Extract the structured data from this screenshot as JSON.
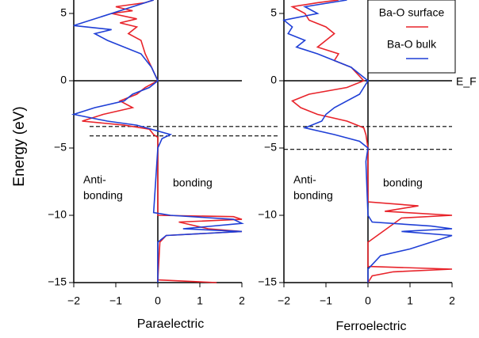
{
  "chart_data": [
    {
      "type": "line",
      "ylabel": "Energy (eV)",
      "xlabel": "Paraelectric",
      "annotations": [
        "Anti-",
        "bonding",
        "bonding"
      ],
      "xlim": [
        -2,
        2
      ],
      "ylim": [
        -15,
        6
      ],
      "xticks": [
        {
          "value": -2,
          "label": "−2"
        },
        {
          "value": -1,
          "label": "−1"
        },
        0,
        1,
        2
      ],
      "yticks": [
        {
          "value": -15,
          "label": "−15"
        },
        {
          "value": -10,
          "label": "−10"
        },
        {
          "value": -5,
          "label": "−5"
        },
        0,
        5
      ],
      "hlines": [
        -3.4,
        -4.1
      ],
      "series": [
        {
          "color": "#e8232a",
          "y": [
            6,
            5.8,
            5.5,
            5.2,
            5,
            4.6,
            4.3,
            4,
            3.5,
            3,
            2,
            1,
            0,
            -0.5,
            -1,
            -1.5,
            -2,
            -2.5,
            -3,
            -3.3,
            -3.6,
            -4,
            -4.2,
            -5,
            -10,
            -10.1,
            -10.3,
            -10.5,
            -11,
            -11.2,
            -11.5,
            -12,
            -14.8,
            -15
          ],
          "x": [
            -0.1,
            -0.3,
            -1.0,
            -0.6,
            -1.1,
            -0.5,
            -0.9,
            -0.5,
            -0.7,
            -0.4,
            -0.3,
            -0.15,
            0,
            -0.3,
            -0.5,
            -0.9,
            -0.6,
            -1.3,
            -1.8,
            -0.8,
            -0.2,
            -0.1,
            0,
            0,
            0,
            1.8,
            2,
            0.5,
            1.2,
            2,
            0.2,
            0.05,
            0,
            1.4
          ]
        },
        {
          "color": "#1f3fd6",
          "y": [
            6,
            4.1,
            3.8,
            3.5,
            3,
            2,
            1,
            0,
            -0.5,
            -1,
            -1.5,
            -2,
            -2.5,
            -3,
            -3.3,
            -4,
            -4.3,
            -5,
            -9.8,
            -10,
            -10.3,
            -10.6,
            -11,
            -11.2,
            -11.5,
            -12,
            -15
          ],
          "x": [
            -0.1,
            -2,
            -1.1,
            -1.5,
            -1.2,
            -0.4,
            -0.15,
            0,
            -0.2,
            -0.6,
            -0.8,
            -1.5,
            -2,
            -1.2,
            -0.5,
            0.3,
            0.1,
            0,
            -0.1,
            0.3,
            1.8,
            2,
            0.6,
            2,
            0.2,
            0,
            0
          ]
        }
      ]
    },
    {
      "type": "line",
      "xlabel": "Ferroelectric",
      "ref_label": "E_F",
      "annotations": [
        "Anti-",
        "bonding",
        "bonding"
      ],
      "xlim": [
        -2,
        2
      ],
      "ylim": [
        -15,
        6
      ],
      "xticks": [
        {
          "value": -2,
          "label": "−2"
        },
        {
          "value": -1,
          "label": "−1"
        },
        0,
        1,
        2
      ],
      "yticks": [
        {
          "value": -15,
          "label": "−15"
        },
        {
          "value": -10,
          "label": "−10"
        },
        {
          "value": -5,
          "label": "−5"
        },
        0,
        5
      ],
      "hlines": [
        -3.4,
        -5.1
      ],
      "series": [
        {
          "name": "Ba-O surface",
          "color": "#e8232a",
          "y": [
            6,
            5.8,
            5.5,
            5,
            4.5,
            4,
            3.5,
            3,
            2.5,
            2,
            1.5,
            1,
            0,
            -0.5,
            -1,
            -1.5,
            -2,
            -2.5,
            -3,
            -3.5,
            -4,
            -5,
            -9,
            -9.3,
            -9.7,
            -10,
            -10.2,
            -12,
            -13.8,
            -14,
            -14.2,
            -14.5,
            -15
          ],
          "x": [
            -0.7,
            -1.2,
            -1.8,
            -1.5,
            -1.4,
            -1.0,
            -0.8,
            -1.0,
            -1.2,
            -0.7,
            -0.8,
            -0.4,
            -0.1,
            -0.5,
            -1.4,
            -1.8,
            -1.6,
            -1.2,
            -0.5,
            -0.1,
            -0.05,
            0,
            0,
            1.2,
            0.4,
            2,
            0.8,
            0,
            0,
            2,
            0.6,
            0.1,
            0
          ]
        },
        {
          "name": "Ba-O bulk",
          "color": "#1f3fd6",
          "y": [
            6,
            5.5,
            5,
            4.5,
            4,
            3.5,
            3,
            2.5,
            2,
            1,
            0,
            -0.5,
            -1,
            -2,
            -2.5,
            -3,
            -3.5,
            -4,
            -4.5,
            -5,
            -6,
            -10,
            -10.5,
            -10.8,
            -11,
            -11.2,
            -11.5,
            -12,
            -12.5,
            -13,
            -14,
            -15
          ],
          "x": [
            -0.5,
            -1.5,
            -1.2,
            -2,
            -1.8,
            -1.9,
            -1.5,
            -1.7,
            -1.2,
            -0.4,
            0,
            -0.1,
            -0.2,
            -0.8,
            -1,
            -1.1,
            -1.5,
            -0.8,
            -0.2,
            0,
            -0.05,
            0,
            0.1,
            1.5,
            2,
            0.8,
            2,
            1.5,
            1,
            0.3,
            0,
            0
          ]
        }
      ]
    }
  ]
}
